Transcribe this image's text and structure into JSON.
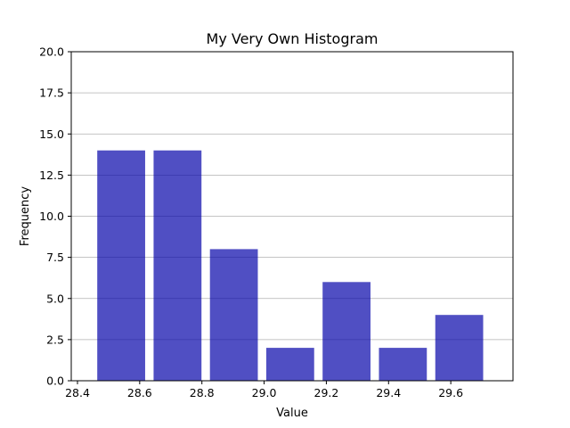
{
  "chart_data": {
    "type": "bar",
    "title": "My Very Own Histogram",
    "xlabel": "Value",
    "ylabel": "Frequency",
    "bins": [
      {
        "start": 28.45,
        "end": 28.6311,
        "count": 14
      },
      {
        "start": 28.6311,
        "end": 28.8122,
        "count": 14
      },
      {
        "start": 28.8122,
        "end": 28.9933,
        "count": 8
      },
      {
        "start": 28.9933,
        "end": 29.1744,
        "count": 2
      },
      {
        "start": 29.1744,
        "end": 29.3555,
        "count": 6
      },
      {
        "start": 29.3555,
        "end": 29.5366,
        "count": 2
      },
      {
        "start": 29.5366,
        "end": 29.7177,
        "count": 4
      }
    ],
    "bar_rwidth": 0.85,
    "xlim": [
      28.38,
      29.8
    ],
    "ylim": [
      0,
      20
    ],
    "xticks": [
      28.4,
      28.6,
      28.8,
      29.0,
      29.2,
      29.4,
      29.6
    ],
    "xtick_labels": [
      "28.4",
      "28.6",
      "28.8",
      "29.0",
      "29.2",
      "29.4",
      "29.6"
    ],
    "yticks": [
      0,
      2.5,
      5,
      7.5,
      10,
      12.5,
      15,
      17.5,
      20
    ],
    "ytick_labels": [
      "0.0",
      "2.5",
      "5.0",
      "7.5",
      "10.0",
      "12.5",
      "15.0",
      "17.5",
      "20.0"
    ],
    "grid": "y-axis",
    "colors": {
      "bar": "#0504aa",
      "bar_alpha": 0.7,
      "grid": "#b0b0b0",
      "axis": "#000000"
    }
  }
}
